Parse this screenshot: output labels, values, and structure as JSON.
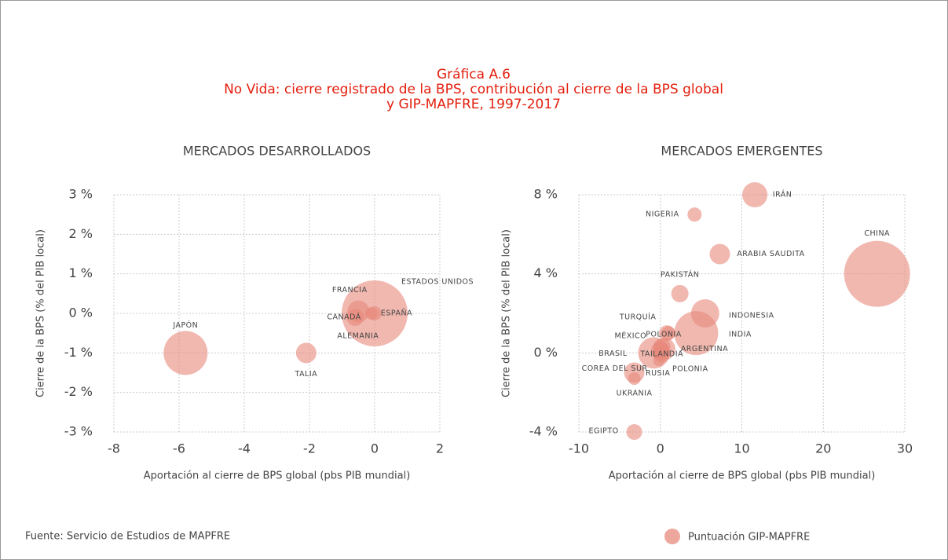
{
  "title": [
    "Gráfica A.6",
    "No Vida: cierre registrado de la BPS, contribución al cierre de la BPS global",
    "y GIP-MAPFRE, 1997-2017"
  ],
  "source": "Fuente: Servicio de Estudios de MAPFRE",
  "legend": "Puntuación GIP-MAPFRE",
  "chart_data": [
    {
      "type": "bubble",
      "title": "MERCADOS DESARROLLADOS",
      "xlabel": "Aportación al cierre de BPS global (pbs PIB mundial)",
      "ylabel": "Cierre de la BPS (% del PIB local)",
      "color": "#e8897c",
      "grid": true,
      "labels": [
        "JAPÓN",
        "TALIA",
        "ESTADOS UNIDOS",
        "FRANCIA",
        "CANADÁ",
        "ESPAÑA",
        "ALEMANIA"
      ],
      "x": [
        -5.8,
        -2.1,
        0,
        -0.5,
        -0.6,
        0,
        -0.1
      ],
      "values": [
        -1,
        -1,
        0,
        0.05,
        -0.1,
        0,
        0
      ],
      "sizes": [
        784,
        169,
        1764,
        196,
        121,
        81,
        64
      ],
      "xlim": [
        -8,
        2
      ],
      "xticks": [
        -8,
        -6,
        -4,
        -2,
        0,
        2
      ],
      "ylim": [
        -3,
        3
      ],
      "yticks": [
        {
          "value": 3,
          "label": "3 %"
        },
        {
          "value": 2,
          "label": "2 %"
        },
        {
          "value": 1,
          "label": "1 %"
        },
        {
          "value": 0,
          "label": "0 %"
        },
        {
          "value": -1,
          "label": "-1 %"
        },
        {
          "value": -2,
          "label": "-2 %"
        },
        {
          "value": -3,
          "label": "-3 %"
        }
      ]
    },
    {
      "type": "bubble",
      "title": "MERCADOS EMERGENTES",
      "xlabel": "Aportación al cierre de BPS global (pbs PIB mundial)",
      "ylabel": "Cierre de la BPS (% del PIB local)",
      "color": "#e8897c",
      "grid": true,
      "labels": [
        "IRÁN",
        "NIGERIA",
        "CHINA",
        "ARABIA SAUDITA",
        "PAKISTÁN",
        "INDONESIA",
        "INDIA",
        "TURQUÍA",
        "POLONIA",
        "MÉXICO",
        "ARGENTINA",
        "BRASIL",
        "TAILANDIA",
        "RUSIA",
        "POLONIA",
        "COREA DEL SUR",
        "UKRANIA",
        "EGIPTO"
      ],
      "x": [
        11.6,
        4.2,
        26.6,
        7.3,
        2.4,
        5.5,
        4.4,
        1,
        0.8,
        0.2,
        0.5,
        -0.8,
        0,
        -0.2,
        0.2,
        -3.2,
        -3.2,
        -3.2
      ],
      "values": [
        8,
        7,
        4,
        5,
        3,
        2,
        1,
        1,
        1,
        0.3,
        0.2,
        0,
        0.1,
        -0.4,
        -0.1,
        -1,
        -1.3,
        -4
      ],
      "sizes": [
        256,
        81,
        1764,
        169,
        121,
        324,
        784,
        81,
        100,
        121,
        196,
        400,
        144,
        49,
        100,
        169,
        64,
        100
      ],
      "xlim": [
        -10,
        30
      ],
      "xticks": [
        -10,
        0,
        10,
        20,
        30
      ],
      "ylim": [
        -4,
        8
      ],
      "yticks": [
        {
          "value": 8,
          "label": "8 %"
        },
        {
          "value": 4,
          "label": "4 %"
        },
        {
          "value": 0,
          "label": "0 %"
        },
        {
          "value": -4,
          "label": "-4 %"
        }
      ]
    }
  ]
}
